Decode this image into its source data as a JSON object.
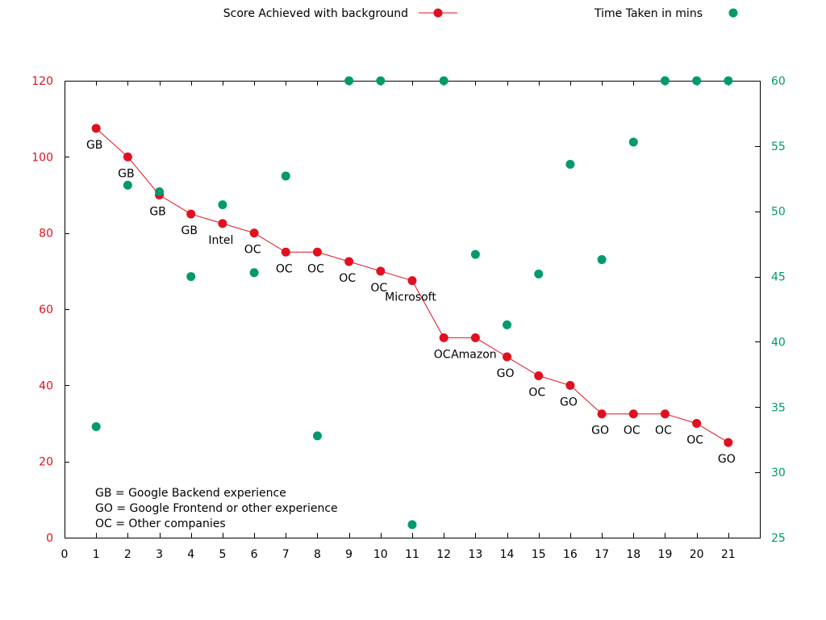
{
  "chart_data": {
    "type": "scatter",
    "x": [
      1,
      2,
      3,
      4,
      5,
      6,
      7,
      8,
      9,
      10,
      11,
      12,
      13,
      14,
      15,
      16,
      17,
      18,
      19,
      20,
      21
    ],
    "xticks": [
      "0",
      "1",
      "2",
      "3",
      "4",
      "5",
      "6",
      "7",
      "8",
      "9",
      "10",
      "11",
      "12",
      "13",
      "14",
      "15",
      "16",
      "17",
      "18",
      "19",
      "20",
      "21"
    ],
    "xlim": [
      0,
      22
    ],
    "ylim": [
      0,
      120
    ],
    "yticks": [
      "0",
      "20",
      "40",
      "60",
      "80",
      "100",
      "120"
    ],
    "y2lim": [
      25,
      60
    ],
    "y2ticks": [
      "25",
      "30",
      "35",
      "40",
      "45",
      "50",
      "55",
      "60"
    ],
    "grid": false,
    "legend_position": "top",
    "series": [
      {
        "name": "Score Achieved with background",
        "axis": "left",
        "style": "linespoints",
        "color": "#e0101f",
        "values": [
          107.5,
          100,
          90,
          85,
          82.5,
          80,
          75,
          75,
          72.5,
          70,
          67.5,
          52.5,
          52.5,
          47.5,
          42.5,
          40,
          32.5,
          32.5,
          32.5,
          30,
          25
        ],
        "point_labels": [
          "GB",
          "GB",
          "GB",
          "GB",
          "Intel",
          "OC",
          "OC",
          "OC",
          "OC",
          "OC",
          "Microsoft",
          "OC",
          "Amazon",
          "GO",
          "OC",
          "GO",
          "GO",
          "OC",
          "OC",
          "OC",
          "GO"
        ]
      },
      {
        "name": "Time Taken in mins",
        "axis": "right",
        "style": "points",
        "color": "#009a6e",
        "values": [
          33.5,
          52,
          51.5,
          45,
          50.5,
          45.3,
          52.7,
          32.8,
          60,
          60,
          26,
          60,
          46.7,
          41.3,
          45.2,
          53.6,
          46.3,
          55.3,
          60,
          60,
          60
        ]
      }
    ],
    "notes": [
      "GB = Google Backend experience",
      "GO = Google Frontend or other experience",
      "OC = Other companies"
    ]
  }
}
